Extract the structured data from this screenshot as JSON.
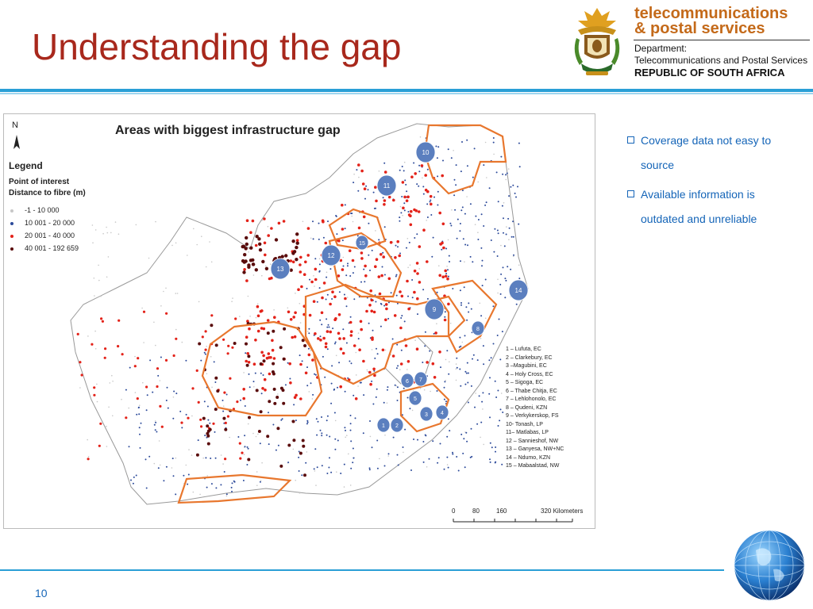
{
  "slide": {
    "title": "Understanding the gap",
    "page_number": "10"
  },
  "logo": {
    "brand_line1": "telecommunications",
    "brand_line2": "& postal services",
    "dept_line1": "Department:",
    "dept_line2": "Telecommunications and Postal Services",
    "dept_line3": "REPUBLIC OF SOUTH AFRICA"
  },
  "map": {
    "title": "Areas with biggest infrastructure gap",
    "north_label": "N",
    "legend": {
      "title": "Legend",
      "subtitle1": "Point of interest",
      "subtitle2": "Distance to fibre (m)",
      "items": [
        {
          "label": "-1 - 10 000",
          "color": "#c7c7c7"
        },
        {
          "label": "10 001 - 20 000",
          "color": "#2c4a9a"
        },
        {
          "label": "20 001 - 40 000",
          "color": "#e32219"
        },
        {
          "label": "40 001 - 192 659",
          "color": "#5a0c0c"
        }
      ]
    },
    "sites": [
      "1 – Lufuta, EC",
      "2 – Clarkebury, EC",
      "3 –Magubini, EC",
      "4 – Holy Cross, EC",
      "5 – Sigoga, EC",
      "6 – Thabe Chitja, EC",
      "7 – Lehlohonolo, EC",
      "8 – Qudeni, KZN",
      "9 – Verkykerskop, FS",
      "10- Tonash, LP",
      "11– Matlabas, LP",
      "12 – Sannieshof, NW",
      "13 – Ganyesa, NW+NC",
      "14 – Ndumo, KZN",
      "15 – Mabaalstad, NW"
    ],
    "markers": [
      "1",
      "2",
      "3",
      "4",
      "5",
      "6",
      "7",
      "8",
      "9",
      "10",
      "11",
      "12",
      "13",
      "14",
      "15"
    ],
    "scale_labels": [
      "0",
      "80",
      "160",
      "320 Kilometers"
    ],
    "colors": {
      "boundary": "#e8772e",
      "marker": "#5b7fbf",
      "land": "#ffffff",
      "border": "#999999"
    }
  },
  "bullets": [
    "Coverage data not easy to source",
    "Available information is outdated and unreliable"
  ],
  "theme": {
    "title_color": "#a8281c",
    "accent_blue": "#2a9fd6",
    "text_blue": "#1565b8",
    "brand_orange": "#c46a1a"
  }
}
